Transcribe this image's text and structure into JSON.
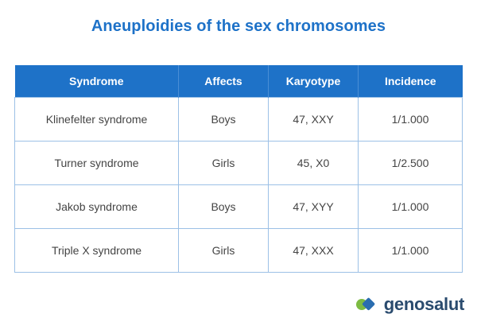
{
  "title": "Aneuploidies of the sex chromosomes",
  "table": {
    "headers": [
      "Syndrome",
      "Affects",
      "Karyotype",
      "Incidence"
    ],
    "rows": [
      [
        "Klinefelter syndrome",
        "Boys",
        "47, XXY",
        "1/1.000"
      ],
      [
        "Turner syndrome",
        "Girls",
        "45, X0",
        "1/2.500"
      ],
      [
        "Jakob syndrome",
        "Boys",
        "47, XYY",
        "1/1.000"
      ],
      [
        "Triple X syndrome",
        "Girls",
        "47, XXX",
        "1/1.000"
      ]
    ]
  },
  "logo": {
    "text": "genosalut",
    "icon": "genosalut-logo-icon",
    "colors": [
      "#7dbb42",
      "#2a6db0"
    ]
  },
  "colors": {
    "accent": "#1e72c8",
    "header_text": "#ffffff",
    "cell_border": "#9cc0e6",
    "body_text": "#444444"
  }
}
